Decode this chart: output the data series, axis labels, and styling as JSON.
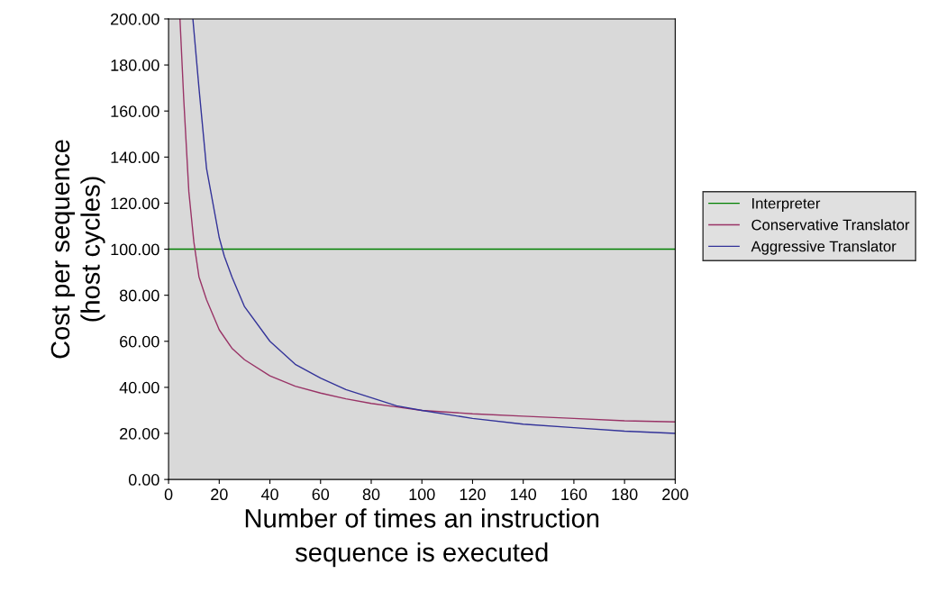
{
  "chart_data": {
    "type": "line",
    "xlabel": "Number of times an instruction\nsequence is executed",
    "ylabel": "Cost per sequence\n(host cycles)",
    "xlim": [
      0,
      200
    ],
    "xticks": [
      0,
      20,
      40,
      60,
      80,
      100,
      120,
      140,
      160,
      180,
      200
    ],
    "ylim": [
      0,
      200
    ],
    "yticks": [
      {
        "value": 0,
        "label": "0.00"
      },
      {
        "value": 20,
        "label": "20.00"
      },
      {
        "value": 40,
        "label": "40.00"
      },
      {
        "value": 60,
        "label": "60.00"
      },
      {
        "value": 80,
        "label": "80.00"
      },
      {
        "value": 100,
        "label": "100.00"
      },
      {
        "value": 120,
        "label": "120.00"
      },
      {
        "value": 140,
        "label": "140.00"
      },
      {
        "value": 160,
        "label": "160.00"
      },
      {
        "value": 180,
        "label": "180.00"
      },
      {
        "value": 200,
        "label": "200.00"
      }
    ],
    "grid": false,
    "legend": "right",
    "line_style": "solid",
    "marker": "none",
    "series": [
      {
        "name": "Interpreter",
        "color": "#008000",
        "x": [
          0,
          200
        ],
        "values": [
          100,
          100
        ]
      },
      {
        "name": "Conservative Translator",
        "color": "#993366",
        "x": [
          4.5,
          6,
          8,
          10,
          12,
          15,
          20,
          25,
          30,
          40,
          50,
          60,
          70,
          80,
          90,
          100,
          120,
          140,
          160,
          180,
          200
        ],
        "values": [
          200,
          165,
          125,
          103,
          88,
          78,
          65,
          57,
          52,
          45,
          40.5,
          37.5,
          35,
          33,
          31.5,
          30,
          28.5,
          27.5,
          26.5,
          25.5,
          25
        ]
      },
      {
        "name": "Aggressive Translator",
        "color": "#333399",
        "x": [
          9.6,
          12,
          15,
          20,
          22,
          25,
          30,
          40,
          50,
          60,
          70,
          80,
          90,
          100,
          120,
          140,
          160,
          180,
          200
        ],
        "values": [
          200,
          170,
          135,
          105,
          97,
          88,
          75,
          60,
          50,
          44,
          39,
          35.5,
          32,
          30,
          26.5,
          24,
          22.5,
          21,
          20
        ]
      }
    ]
  }
}
